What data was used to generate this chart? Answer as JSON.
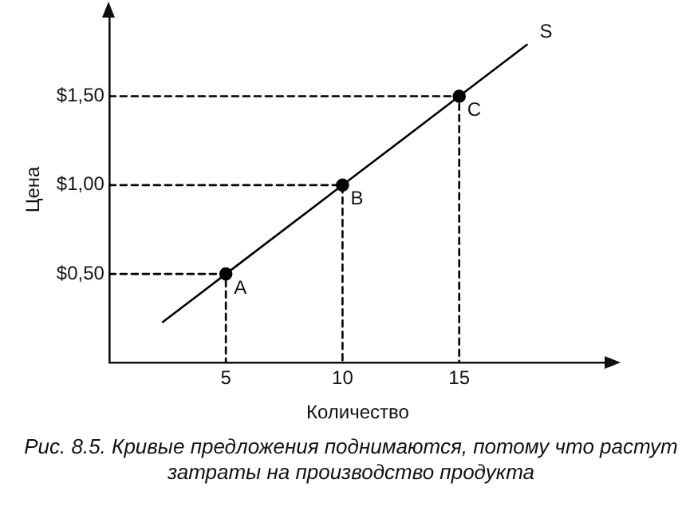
{
  "chart_data": {
    "type": "line",
    "xlabel": "Количество",
    "ylabel": "Цена",
    "xlim": [
      0,
      21.3
    ],
    "ylim": [
      0,
      1.95
    ],
    "xticks": [
      5,
      10,
      15
    ],
    "yticks": [
      {
        "value": 0.5,
        "label": "$0,50"
      },
      {
        "value": 1,
        "label": "$1,00"
      },
      {
        "value": 1.5,
        "label": "$1,50"
      }
    ],
    "grid": false,
    "legend": false,
    "series": [
      {
        "type": "line",
        "color": "#000000",
        "x": [
          2.3,
          5,
          10,
          15,
          17.9
        ],
        "values": [
          0.23,
          0.5,
          1,
          1.5,
          1.79
        ],
        "marker": "none",
        "line_style": "solid"
      },
      {
        "type": "line",
        "color": "#000000",
        "x": [
          0,
          5,
          5
        ],
        "values": [
          0.5,
          0.5,
          0
        ],
        "marker": "none",
        "line_style": "dashed"
      },
      {
        "type": "line",
        "color": "#000000",
        "x": [
          0,
          10,
          10
        ],
        "values": [
          1,
          1,
          0
        ],
        "marker": "none",
        "line_style": "dashed"
      },
      {
        "type": "line",
        "color": "#000000",
        "x": [
          0,
          15,
          15
        ],
        "values": [
          1.5,
          1.5,
          0
        ],
        "marker": "none",
        "line_style": "dashed"
      },
      {
        "type": "scatter",
        "color": "#000000",
        "x": [
          5,
          10,
          15
        ],
        "values": [
          0.5,
          1,
          1.5
        ],
        "marker": "circle"
      }
    ],
    "annotations": [
      {
        "text": "A",
        "x": 5,
        "y": 0.5
      },
      {
        "text": "B",
        "x": 10,
        "y": 1
      },
      {
        "text": "C",
        "x": 15,
        "y": 1.5
      },
      {
        "text": "S",
        "x": 17.9,
        "y": 1.79
      },
      "Рис. 8.5. Кривые предложения поднимаются, потому что растут затраты на производство продукта"
    ]
  }
}
